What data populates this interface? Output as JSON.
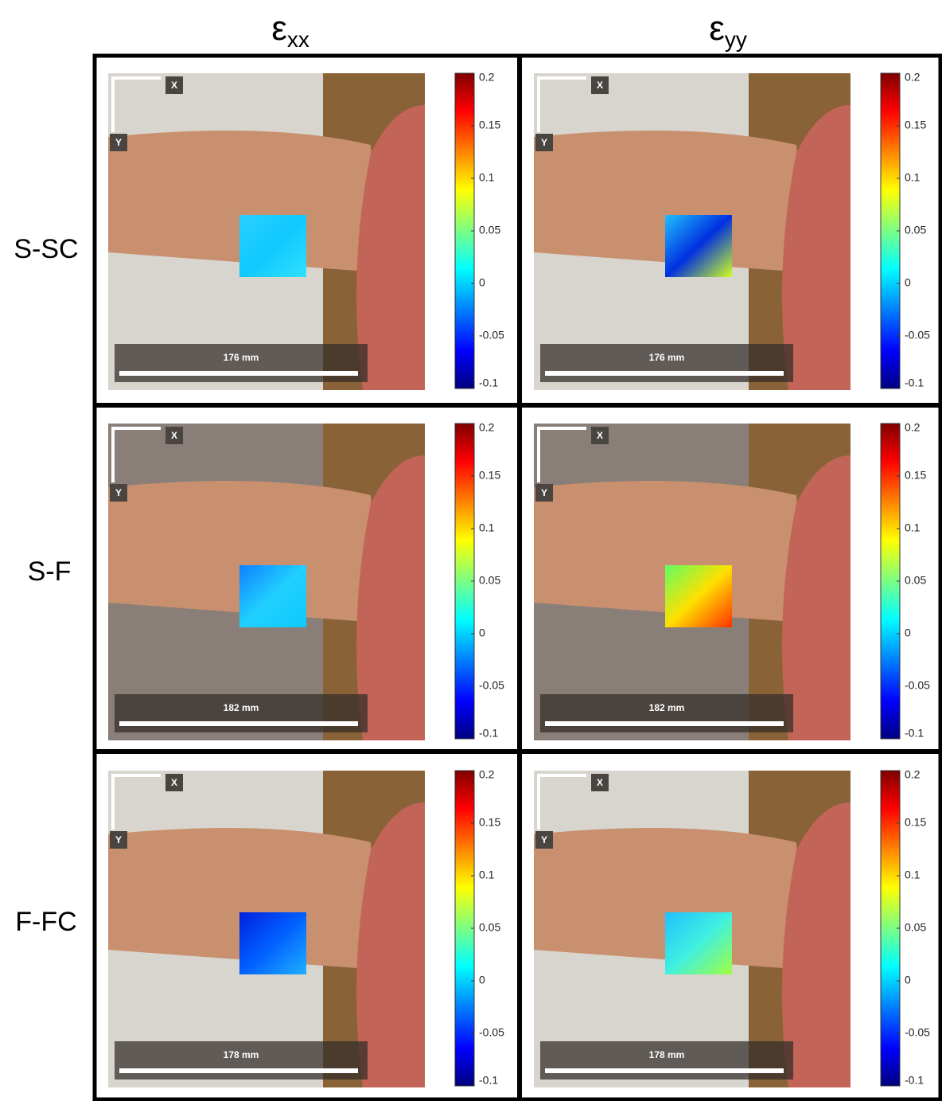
{
  "column_headers": [
    {
      "symbol": "ε",
      "subscript": "xx"
    },
    {
      "symbol": "ε",
      "subscript": "yy"
    }
  ],
  "row_labels": [
    "S-SC",
    "S-F",
    "F-FC"
  ],
  "panels": [
    [
      {
        "x_label": "X",
        "y_label": "Y",
        "scale": "176 mm",
        "colorbar": {
          "lim": [
            -0.1,
            0.2
          ],
          "ticks": [
            0.2,
            0.15,
            0.1,
            0.05,
            0,
            -0.05,
            -0.1
          ]
        }
      },
      {
        "x_label": "X",
        "y_label": "Y",
        "scale": "176 mm",
        "colorbar": {
          "lim": [
            -0.1,
            0.2
          ],
          "ticks": [
            0.2,
            0.15,
            0.1,
            0.05,
            0,
            -0.05,
            -0.1
          ]
        }
      }
    ],
    [
      {
        "x_label": "X",
        "y_label": "Y",
        "scale": "182 mm",
        "colorbar": {
          "lim": [
            -0.1,
            0.2
          ],
          "ticks": [
            0.2,
            0.15,
            0.1,
            0.05,
            0,
            -0.05,
            -0.1
          ]
        }
      },
      {
        "x_label": "X",
        "y_label": "Y",
        "scale": "182 mm",
        "colorbar": {
          "lim": [
            -0.1,
            0.2
          ],
          "ticks": [
            0.2,
            0.15,
            0.1,
            0.05,
            0,
            -0.05,
            -0.1
          ]
        }
      }
    ],
    [
      {
        "x_label": "X",
        "y_label": "Y",
        "scale": "178 mm",
        "colorbar": {
          "lim": [
            -0.1,
            0.2
          ],
          "ticks": [
            0.2,
            0.15,
            0.1,
            0.05,
            0,
            -0.05,
            -0.1
          ]
        }
      },
      {
        "x_label": "X",
        "y_label": "Y",
        "scale": "178 mm",
        "colorbar": {
          "lim": [
            -0.1,
            0.2
          ],
          "ticks": [
            0.2,
            0.15,
            0.1,
            0.05,
            0,
            -0.05,
            -0.1
          ]
        }
      }
    ]
  ]
}
